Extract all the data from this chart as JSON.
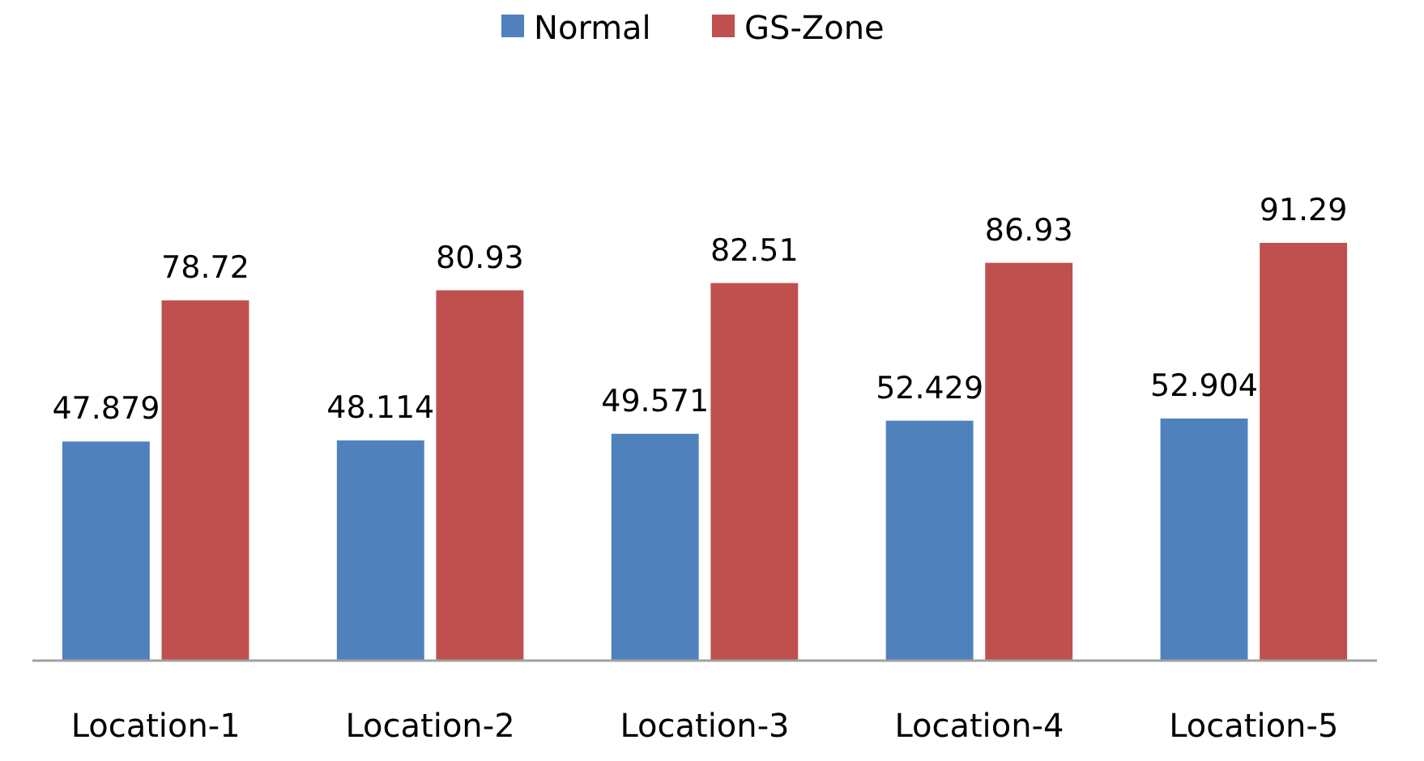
{
  "chart_data": {
    "type": "bar",
    "categories": [
      "Location-1",
      "Location-2",
      "Location-3",
      "Location-4",
      "Location-5"
    ],
    "series": [
      {
        "name": "Normal",
        "color": "#4f81bd",
        "values": [
          47.879,
          48.114,
          49.571,
          52.429,
          52.904
        ]
      },
      {
        "name": "GS-Zone",
        "color": "#c0504d",
        "values": [
          78.72,
          80.93,
          82.51,
          86.93,
          91.29
        ]
      }
    ],
    "data_labels": true,
    "legend": "top"
  }
}
